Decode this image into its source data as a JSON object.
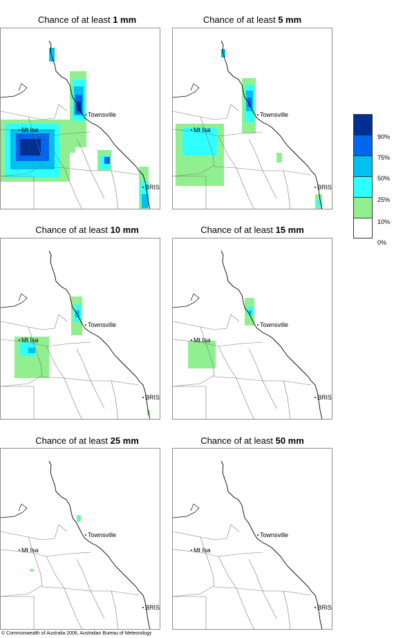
{
  "panels": [
    {
      "prefix": "Chance of at least ",
      "amount": "1 mm",
      "level": 0
    },
    {
      "prefix": "Chance of at least ",
      "amount": "5 mm",
      "level": 1
    },
    {
      "prefix": "Chance of at least ",
      "amount": "10 mm",
      "level": 2
    },
    {
      "prefix": "Chance of at least ",
      "amount": "15 mm",
      "level": 3
    },
    {
      "prefix": "Chance of at least ",
      "amount": "25 mm",
      "level": 4
    },
    {
      "prefix": "Chance of at least ",
      "amount": "50 mm",
      "level": 5
    }
  ],
  "places": {
    "townsville": "Townsville",
    "mt_isa": "Mt Isa",
    "bris": "BRIS"
  },
  "legend": {
    "colors": [
      "#00308f",
      "#0066ee",
      "#00c0f0",
      "#30ffff",
      "#90f090",
      "#ffffff"
    ],
    "labels": [
      "90%",
      "75%",
      "50%",
      "25%",
      "10%",
      "0%"
    ]
  },
  "copyright": "© Commonwealth of Australia 2006, Australian Bureau of Meteorology"
}
